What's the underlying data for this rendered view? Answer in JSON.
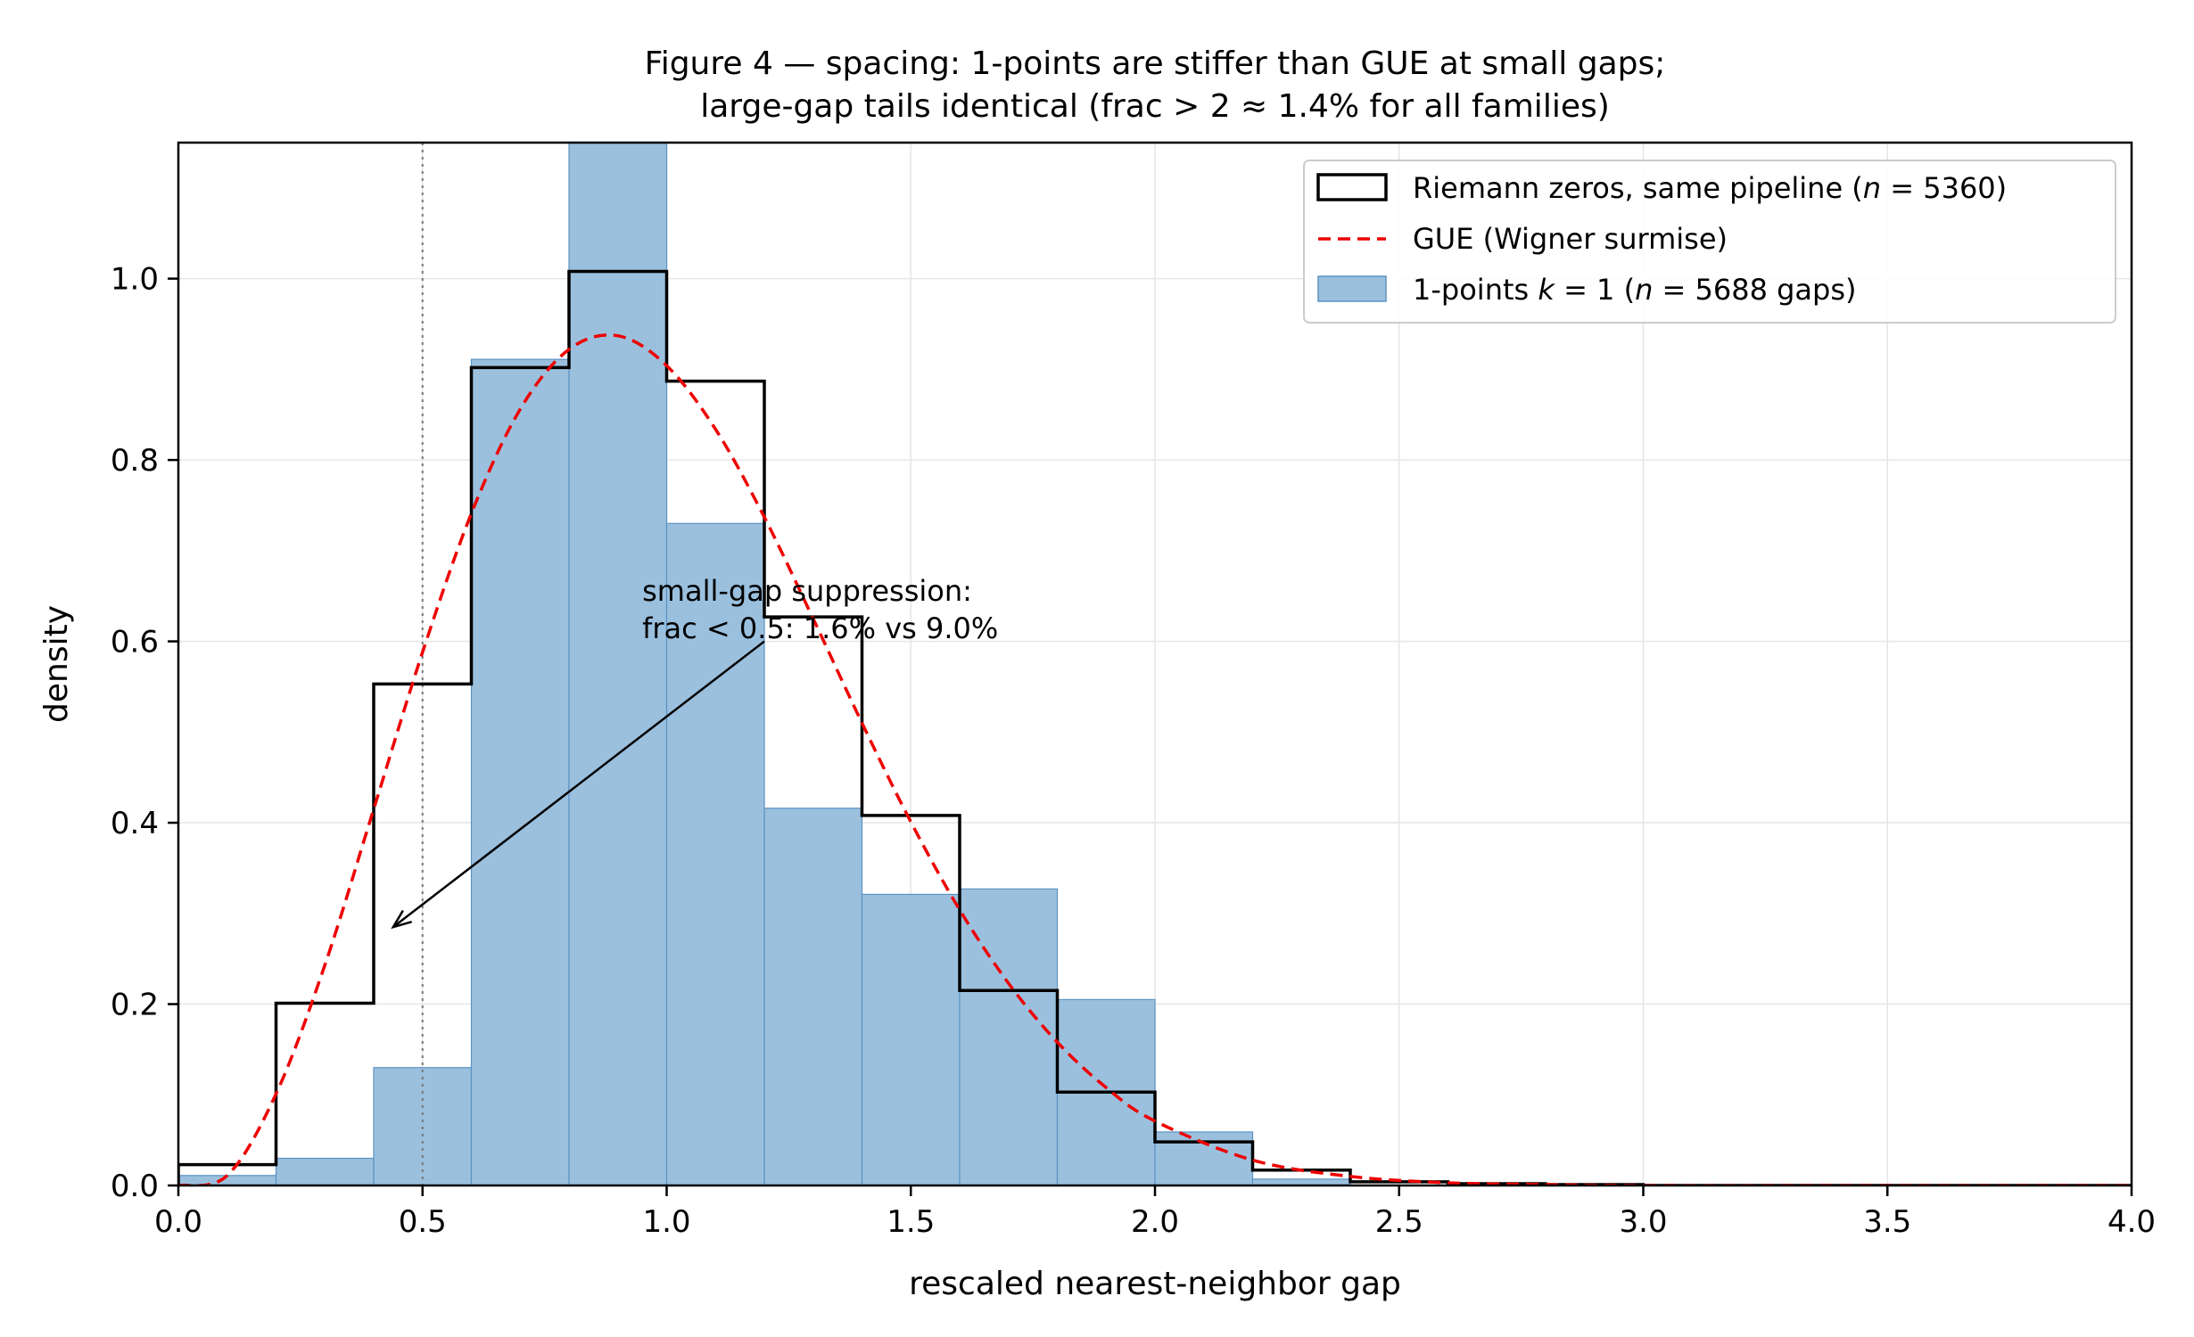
{
  "chart_data": {
    "type": "bar",
    "title_line1": "Figure 4 — spacing: 1-points are stiffer than GUE at small gaps;",
    "title_line2": "large-gap tails identical (frac > 2 ≈ 1.4% for all families)",
    "xlabel": "rescaled nearest-neighbor gap",
    "ylabel": "density",
    "xlim": [
      0,
      4
    ],
    "ylim": [
      0,
      1.15
    ],
    "xticks": [
      0.0,
      0.5,
      1.0,
      1.5,
      2.0,
      2.5,
      3.0,
      3.5,
      4.0
    ],
    "xtick_labels": [
      "0.0",
      "0.5",
      "1.0",
      "1.5",
      "2.0",
      "2.5",
      "3.0",
      "3.5",
      "4.0"
    ],
    "yticks": [
      0.0,
      0.2,
      0.4,
      0.6,
      0.8,
      1.0
    ],
    "ytick_labels": [
      "0.0",
      "0.2",
      "0.4",
      "0.6",
      "0.8",
      "1.0"
    ],
    "grid": true,
    "legend_position": "top-right",
    "bin_edges": [
      0.0,
      0.2,
      0.4,
      0.6,
      0.8,
      1.0,
      1.2,
      1.4,
      1.6,
      1.8,
      2.0,
      2.2,
      2.4,
      2.6,
      2.8,
      3.0,
      3.2,
      3.4,
      3.6,
      3.8,
      4.0
    ],
    "series": [
      {
        "name": "Riemann zeros, same pipeline (n = 5360)",
        "kind": "step",
        "color": "#000000",
        "values": [
          0.023,
          0.201,
          0.553,
          0.902,
          1.008,
          0.887,
          0.627,
          0.408,
          0.215,
          0.103,
          0.048,
          0.017,
          0.004,
          0.002,
          0.001,
          0.0,
          0.0,
          0.0,
          0.0,
          0.0
        ]
      },
      {
        "name": "GUE (Wigner surmise)",
        "kind": "curve",
        "color": "#ee0000",
        "x": [
          0.0,
          0.1,
          0.2,
          0.3,
          0.4,
          0.5,
          0.6,
          0.7,
          0.8,
          0.9,
          1.0,
          1.1,
          1.2,
          1.3,
          1.4,
          1.5,
          1.6,
          1.7,
          1.8,
          1.9,
          2.0,
          2.2,
          2.4,
          2.6,
          2.8,
          3.0,
          3.5,
          4.0
        ],
        "values": [
          0.0,
          0.011,
          0.101,
          0.243,
          0.415,
          0.588,
          0.741,
          0.856,
          0.922,
          0.937,
          0.904,
          0.834,
          0.737,
          0.625,
          0.51,
          0.401,
          0.304,
          0.223,
          0.158,
          0.108,
          0.071,
          0.028,
          0.01,
          0.003,
          0.001,
          0.0,
          0.0,
          0.0
        ]
      },
      {
        "name": "1-points  k = 1  (n = 5688 gaps)",
        "kind": "bar",
        "color": "#9bc0de",
        "edge_color": "#5b93c3",
        "values": [
          0.011,
          0.03,
          0.13,
          0.911,
          1.19,
          0.73,
          0.416,
          0.321,
          0.327,
          0.205,
          0.059,
          0.007,
          0.0,
          0.0,
          0.0,
          0.0,
          0.0,
          0.0,
          0.0,
          0.0
        ]
      }
    ],
    "reference_line": {
      "x": 0.5,
      "color": "#777777"
    },
    "annotation": {
      "line1": "small-gap suppression:",
      "line2": "frac < 0.5:  1.6% vs 9.0%",
      "text_x": 0.95,
      "text_y": 0.645,
      "arrow_from": [
        1.2,
        0.6
      ],
      "arrow_to": [
        0.44,
        0.285
      ]
    },
    "legend": {
      "riemann": "Riemann zeros, same pipeline (",
      "riemann_n": "n",
      "riemann_tail": " = 5360)",
      "gue": "GUE (Wigner surmise)",
      "pts": "1-points  ",
      "pts_k": "k",
      "pts_mid": " = 1  (",
      "pts_n": "n",
      "pts_tail": " = 5688 gaps)"
    }
  }
}
